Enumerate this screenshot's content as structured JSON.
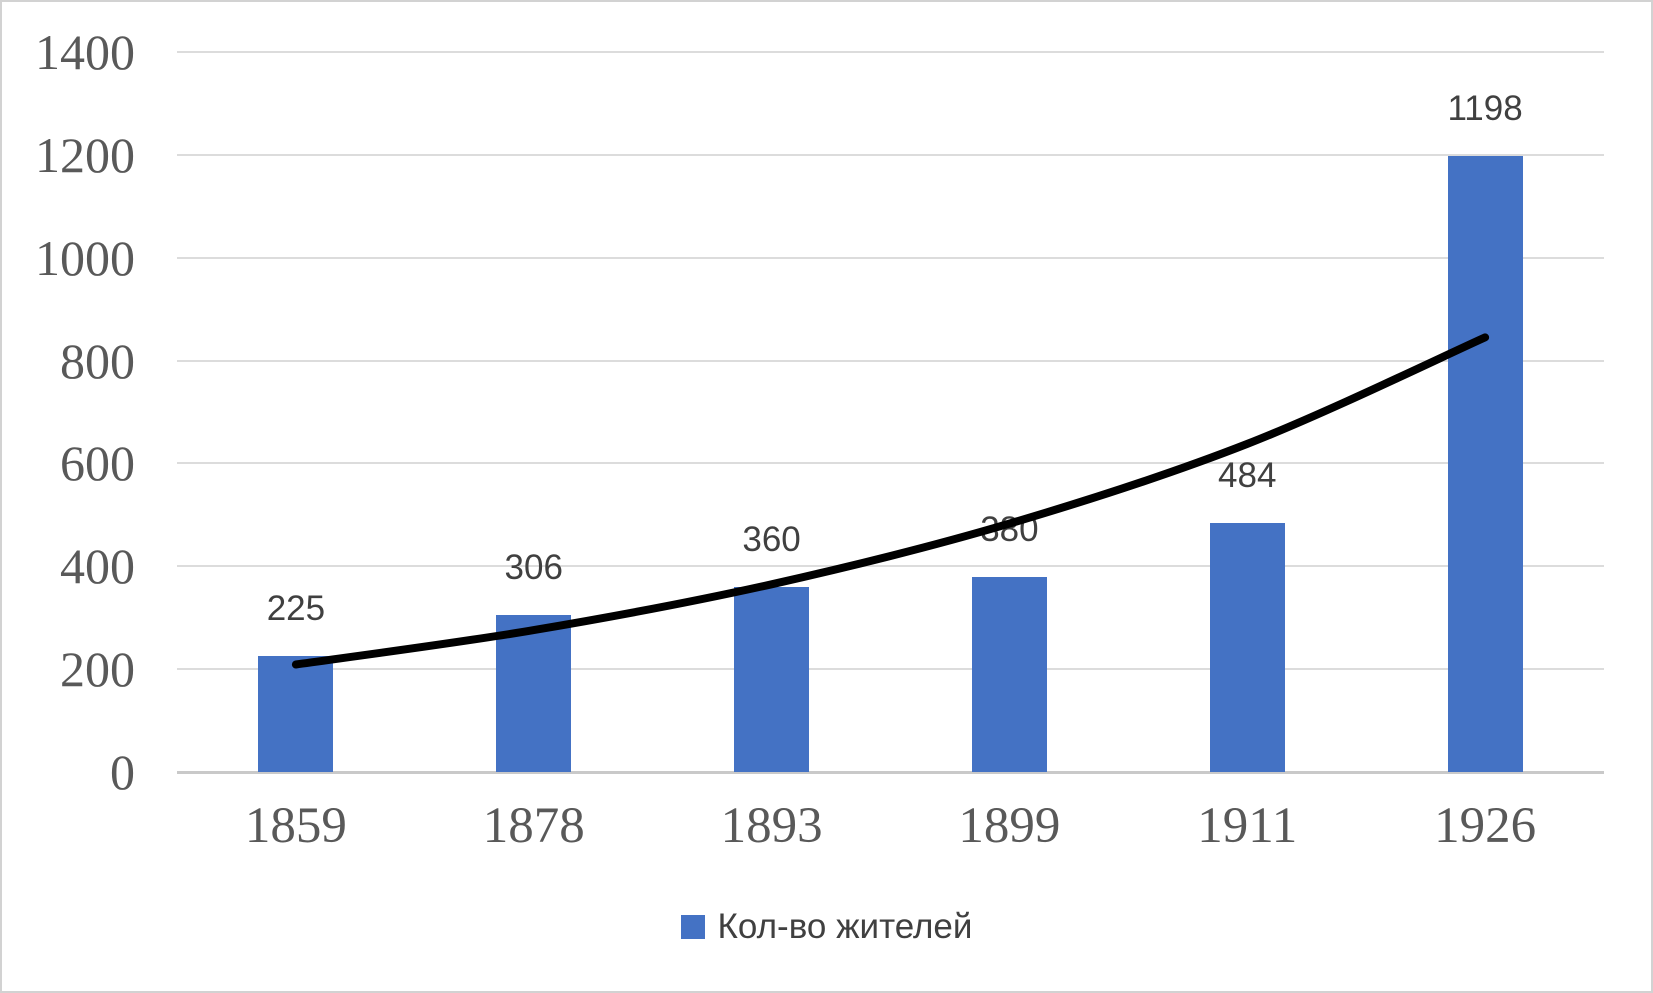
{
  "chart_data": {
    "type": "bar",
    "title": "",
    "categories": [
      "1859",
      "1878",
      "1893",
      "1899",
      "1911",
      "1926"
    ],
    "series": [
      {
        "name": "Кол-во жителей",
        "values": [
          225,
          306,
          360,
          380,
          484,
          1198
        ]
      }
    ],
    "data_labels": [
      "225",
      "306",
      "360",
      "380",
      "484",
      "1198"
    ],
    "y_ticks": [
      0,
      200,
      400,
      600,
      800,
      1000,
      1200,
      1400
    ],
    "ylim": [
      0,
      1400
    ],
    "grid": true,
    "trendline": {
      "type": "exponential",
      "values": [
        209,
        276,
        365,
        483,
        638,
        845
      ],
      "color": "#000000",
      "width": 8
    },
    "colors": {
      "bar": "#4472C4",
      "gridline": "#dcdcdc",
      "axis_line": "#c9c9c9",
      "axis_label": "#595959",
      "data_label": "#404040",
      "legend_text": "#404040"
    },
    "legend": {
      "position": "bottom",
      "label": "Кол-во жителей",
      "swatch_color": "#4472C4"
    }
  }
}
